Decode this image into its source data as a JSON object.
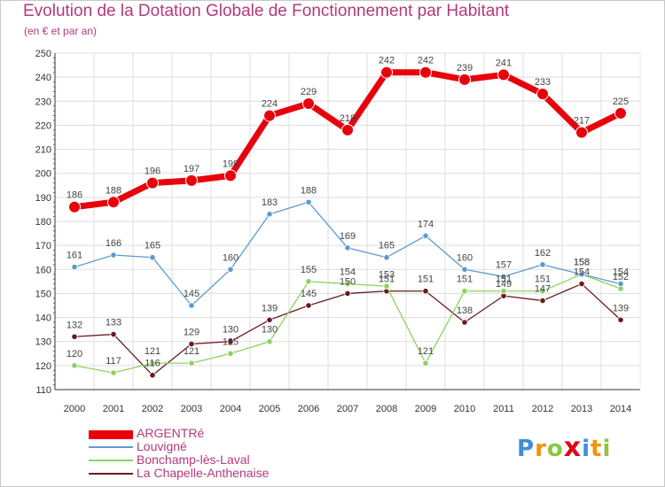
{
  "title": "Evolution de la Dotation Globale de Fonctionnement par Habitant",
  "subtitle": "(en € et par an)",
  "colors": {
    "background": "#ffffff",
    "grid": "#dddddd",
    "axis": "#333333",
    "title": "#b23a7a"
  },
  "logo": {
    "text": "Proxiti",
    "letters": [
      {
        "ch": "P",
        "color": "#3d8fd6"
      },
      {
        "ch": "r",
        "color": "#f29400"
      },
      {
        "ch": "o",
        "color": "#8dc63f"
      },
      {
        "ch": "x",
        "color": "#e2001a"
      },
      {
        "ch": "i",
        "color": "#3d8fd6"
      },
      {
        "ch": "t",
        "color": "#f29400"
      },
      {
        "ch": "i",
        "color": "#8dc63f"
      }
    ]
  },
  "chart_data": {
    "type": "line",
    "title": "Evolution de la Dotation Globale de Fonctionnement par Habitant",
    "subtitle": "(en € et par an)",
    "x": [
      "2000",
      "2001",
      "2002",
      "2003",
      "2004",
      "2005",
      "2006",
      "2007",
      "2008",
      "2009",
      "2010",
      "2011",
      "2012",
      "2013",
      "2014"
    ],
    "ylim": [
      110,
      250
    ],
    "yticks": [
      110,
      120,
      130,
      140,
      150,
      160,
      170,
      180,
      190,
      200,
      210,
      220,
      230,
      240,
      250
    ],
    "grid": true,
    "legend_position": "bottom-left",
    "series": [
      {
        "name": "ARGENTRé",
        "color": "#e8000b",
        "values": [
          186,
          188,
          196,
          197,
          199,
          224,
          229,
          218,
          242,
          242,
          239,
          241,
          233,
          217,
          225
        ],
        "labels": [
          "186",
          "188",
          "196",
          "197",
          "199",
          "224",
          "229",
          "218",
          "242",
          "242",
          "239",
          "241",
          "233",
          "217",
          "225"
        ]
      },
      {
        "name": "Louvigné",
        "color": "#5b9bd0",
        "values": [
          161,
          166,
          165,
          145,
          160,
          183,
          188,
          169,
          165,
          174,
          160,
          157,
          162,
          158,
          154
        ],
        "labels": [
          "161",
          "166",
          "165",
          "145",
          "160",
          "183",
          "188",
          "169",
          "165",
          "174",
          "160",
          "157",
          "162",
          "158",
          "154"
        ]
      },
      {
        "name": "Bonchamp-lès-Laval",
        "color": "#8dd35f",
        "values": [
          120,
          117,
          121,
          121,
          125,
          130,
          155,
          154,
          153,
          121,
          151,
          151,
          151,
          158,
          152
        ],
        "labels": [
          "120",
          "117",
          "121",
          "121",
          "125",
          "130",
          "155",
          "154",
          "153",
          "121",
          "151",
          "151",
          "151",
          "158",
          "152"
        ]
      },
      {
        "name": "La Chapelle-Anthenaise",
        "color": "#6a1a1f",
        "values": [
          132,
          133,
          116,
          129,
          130,
          139,
          145,
          150,
          151,
          151,
          138,
          149,
          147,
          154,
          139
        ],
        "labels": [
          "132",
          "133",
          "116",
          "129",
          "130",
          "139",
          "145",
          "150",
          "151",
          "151",
          "138",
          "149",
          "147",
          "154",
          "139"
        ]
      }
    ]
  }
}
